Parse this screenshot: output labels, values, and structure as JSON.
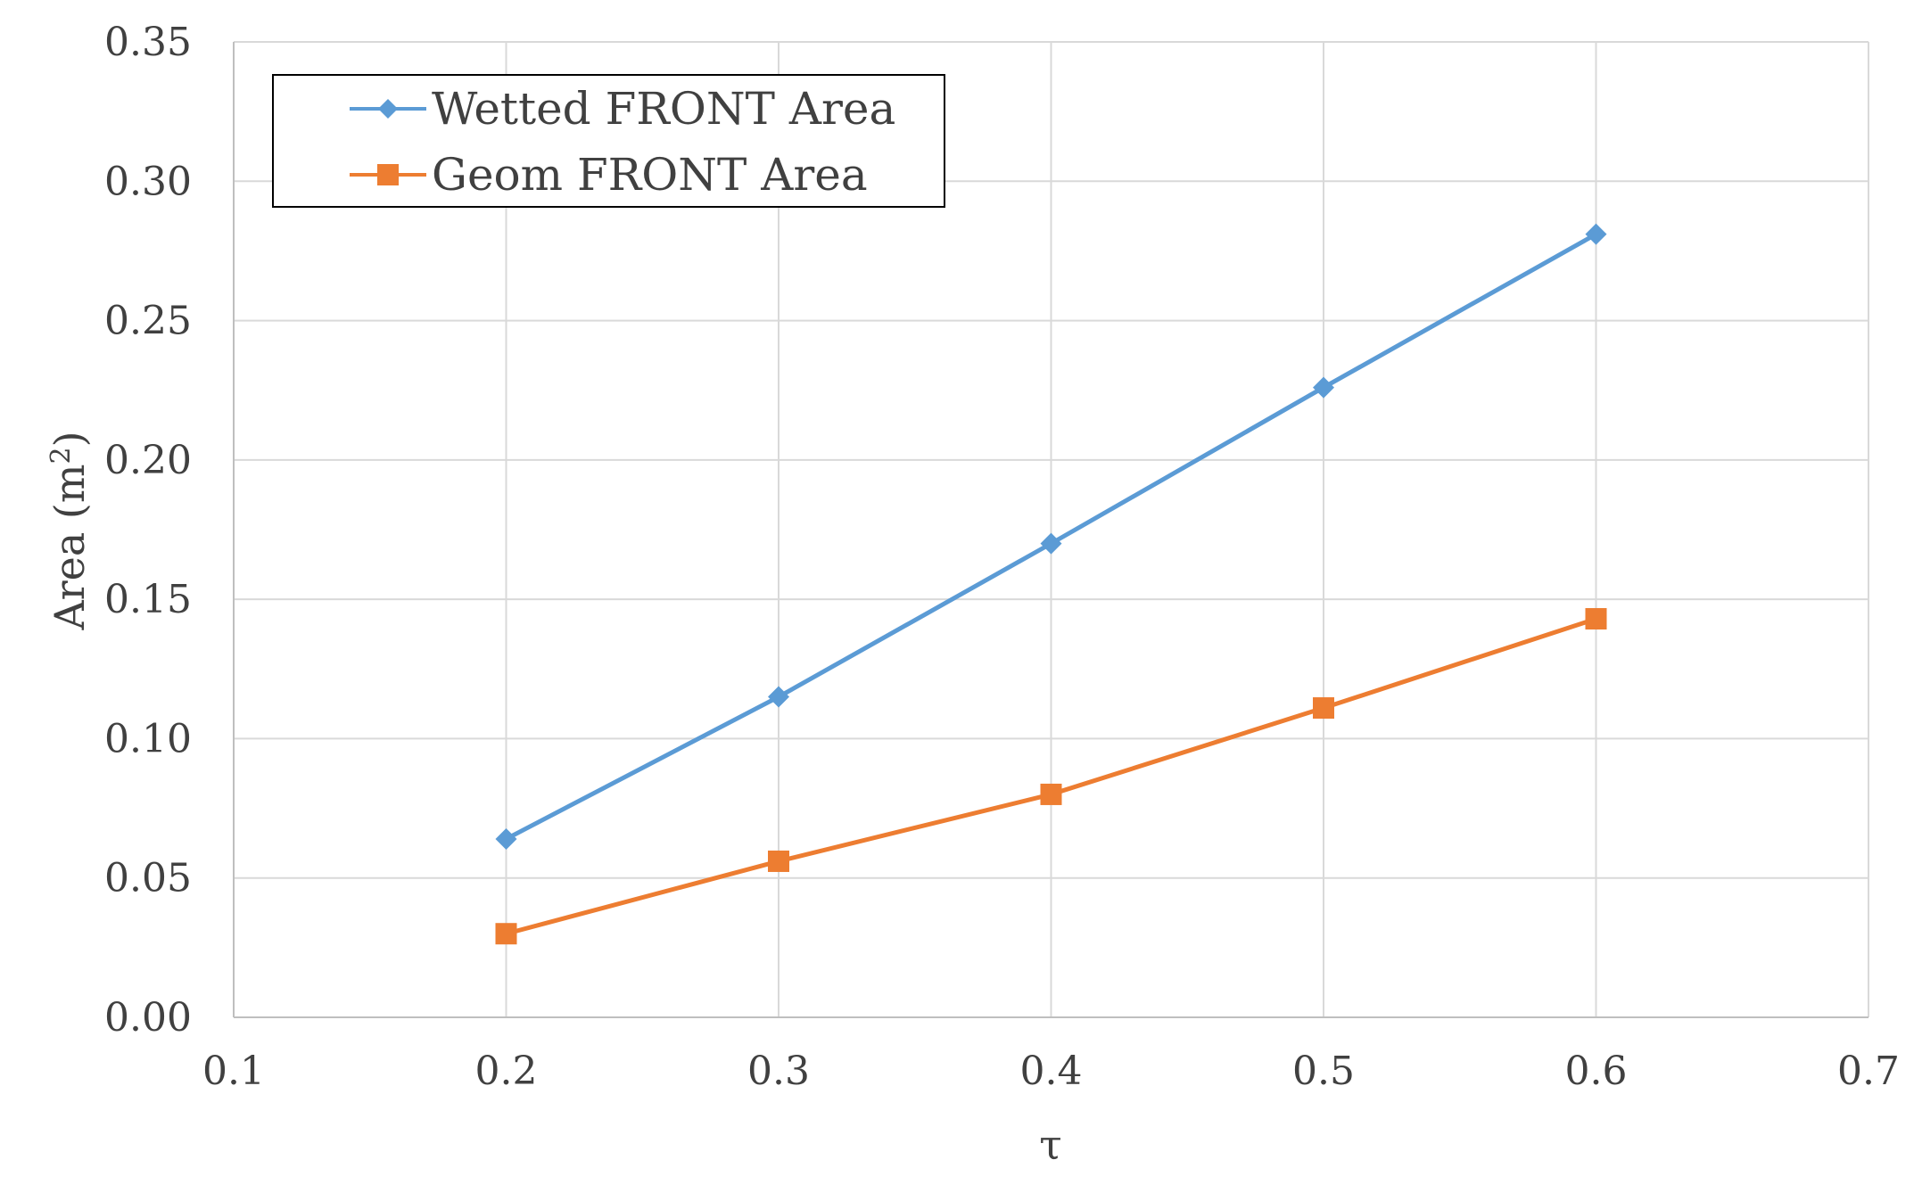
{
  "chart_data": {
    "type": "line",
    "xlabel": "τ",
    "ylabel_main": "Area (m",
    "ylabel_sup": "2",
    "ylabel_end": ")",
    "xlim": [
      0.1,
      0.7
    ],
    "ylim": [
      0,
      0.35
    ],
    "x_ticks": [
      "0.1",
      "0.2",
      "0.3",
      "0.4",
      "0.5",
      "0.6",
      "0.7"
    ],
    "y_ticks": [
      "0.00",
      "0.05",
      "0.10",
      "0.15",
      "0.20",
      "0.25",
      "0.30",
      "0.35"
    ],
    "grid": true,
    "legend_position": "top-left",
    "x": [
      0.2,
      0.3,
      0.4,
      0.5,
      0.6
    ],
    "series": [
      {
        "name": "Wetted FRONT Area",
        "color": "#5b9bd5",
        "marker": "diamond",
        "values": [
          0.064,
          0.115,
          0.17,
          0.226,
          0.281
        ]
      },
      {
        "name": "Geom FRONT Area",
        "color": "#ed7d31",
        "marker": "square",
        "values": [
          0.03,
          0.056,
          0.08,
          0.111,
          0.143
        ]
      }
    ]
  }
}
